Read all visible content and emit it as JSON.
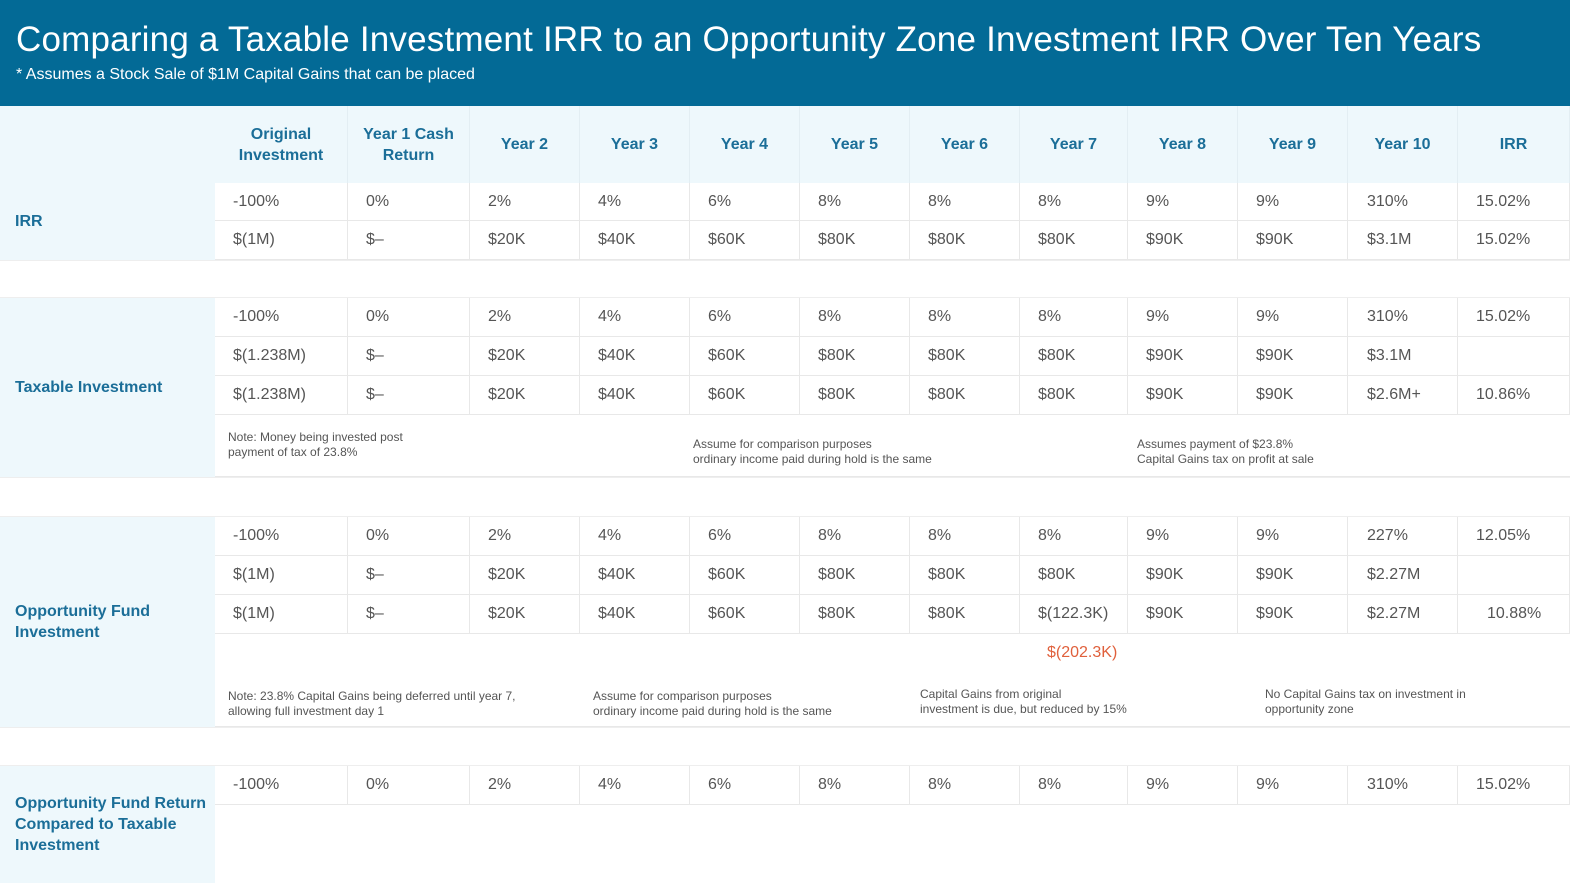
{
  "header": {
    "title": "Comparing a Taxable Investment IRR to an Opportunity Zone Investment IRR Over Ten Years",
    "subtitle": "* Assumes a Stock Sale of $1M Capital Gains that can be placed"
  },
  "colors": {
    "banner": "#036a96",
    "label_text": "#1b6e98",
    "highlight": "#e0603c"
  },
  "columns": [
    "Original Investment",
    "Year 1 Cash Return",
    "Year 2",
    "Year 3",
    "Year 4",
    "Year 5",
    "Year 6",
    "Year 7",
    "Year 8",
    "Year 9",
    "Year 10",
    "IRR"
  ],
  "sections": [
    {
      "label": "IRR",
      "rows": [
        [
          "-100%",
          "0%",
          "2%",
          "4%",
          "6%",
          "8%",
          "8%",
          "8%",
          "9%",
          "9%",
          "310%",
          "15.02%"
        ],
        [
          "$(1M)",
          "$–",
          "$20K",
          "$40K",
          "$60K",
          "$80K",
          "$80K",
          "$80K",
          "$90K",
          "$90K",
          "$3.1M",
          "15.02%"
        ]
      ],
      "notes": []
    },
    {
      "label": "Taxable Investment",
      "rows": [
        [
          "-100%",
          "0%",
          "2%",
          "4%",
          "6%",
          "8%",
          "8%",
          "8%",
          "9%",
          "9%",
          "310%",
          "15.02%"
        ],
        [
          "$(1.238M)",
          "$–",
          "$20K",
          "$40K",
          "$60K",
          "$80K",
          "$80K",
          "$80K",
          "$90K",
          "$90K",
          "$3.1M",
          ""
        ],
        [
          "$(1.238M)",
          "$–",
          "$20K",
          "$40K",
          "$60K",
          "$80K",
          "$80K",
          "$80K",
          "$90K",
          "$90K",
          "$2.6M+",
          "10.86%"
        ]
      ],
      "notes": [
        "Note: Money being invested post\npayment of tax of 23.8%",
        "Assume for comparison purposes\nordinary income paid during hold is the same",
        "Assumes payment of $23.8%\nCapital Gains tax on profit at sale"
      ]
    },
    {
      "label": "Opportunity Fund Investment",
      "rows": [
        [
          "-100%",
          "0%",
          "2%",
          "4%",
          "6%",
          "8%",
          "8%",
          "8%",
          "9%",
          "9%",
          "227%",
          "12.05%"
        ],
        [
          "$(1M)",
          "$–",
          "$20K",
          "$40K",
          "$60K",
          "$80K",
          "$80K",
          "$80K",
          "$90K",
          "$90K",
          "$2.27M",
          ""
        ],
        [
          "$(1M)",
          "$–",
          "$20K",
          "$40K",
          "$60K",
          "$80K",
          "$80K",
          "$(122.3K)",
          "$90K",
          "$90K",
          "$2.27M",
          "10.88%"
        ]
      ],
      "highlight": "$(202.3K)",
      "notes": [
        "Note: 23.8% Capital Gains being deferred until year 7,\nallowing full investment day 1",
        "Assume for comparison purposes\nordinary income paid during hold is the same",
        "Capital Gains from original\ninvestment is due, but reduced by 15%",
        "No Capital Gains tax on investment in\nopportunity zone"
      ]
    },
    {
      "label": "Opportunity Fund Return Compared to Taxable Investment",
      "rows": [
        [
          "-100%",
          "0%",
          "2%",
          "4%",
          "6%",
          "8%",
          "8%",
          "8%",
          "9%",
          "9%",
          "310%",
          "15.02%"
        ]
      ],
      "notes": []
    }
  ]
}
